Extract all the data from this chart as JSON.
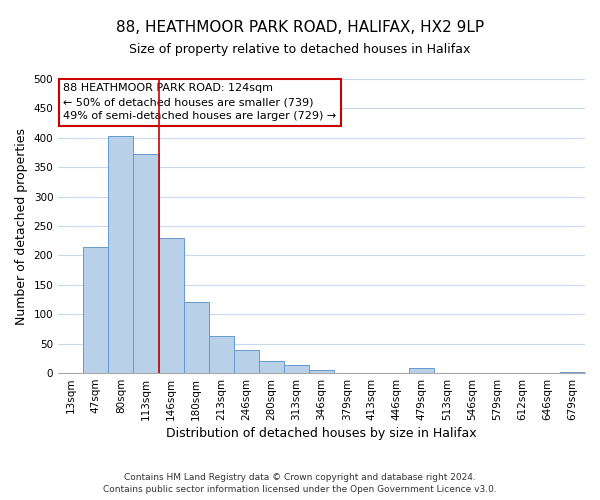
{
  "title": "88, HEATHMOOR PARK ROAD, HALIFAX, HX2 9LP",
  "subtitle": "Size of property relative to detached houses in Halifax",
  "xlabel": "Distribution of detached houses by size in Halifax",
  "ylabel": "Number of detached properties",
  "bar_color": "#b8d0e8",
  "bar_edge_color": "#6699cc",
  "categories": [
    "13sqm",
    "47sqm",
    "80sqm",
    "113sqm",
    "146sqm",
    "180sqm",
    "213sqm",
    "246sqm",
    "280sqm",
    "313sqm",
    "346sqm",
    "379sqm",
    "413sqm",
    "446sqm",
    "479sqm",
    "513sqm",
    "546sqm",
    "579sqm",
    "612sqm",
    "646sqm",
    "679sqm"
  ],
  "values": [
    0,
    215,
    403,
    372,
    229,
    120,
    63,
    40,
    21,
    14,
    5,
    0,
    0,
    0,
    8,
    0,
    0,
    0,
    0,
    0,
    2
  ],
  "ylim": [
    0,
    500
  ],
  "yticks": [
    0,
    50,
    100,
    150,
    200,
    250,
    300,
    350,
    400,
    450,
    500
  ],
  "vline_x_index": 3,
  "vline_color": "#cc0000",
  "annotation_lines": [
    "88 HEATHMOOR PARK ROAD: 124sqm",
    "← 50% of detached houses are smaller (739)",
    "49% of semi-detached houses are larger (729) →"
  ],
  "footer_lines": [
    "Contains HM Land Registry data © Crown copyright and database right 2024.",
    "Contains public sector information licensed under the Open Government Licence v3.0."
  ],
  "background_color": "#ffffff",
  "grid_color": "#c8d8e8",
  "title_fontsize": 11,
  "subtitle_fontsize": 9,
  "axis_label_fontsize": 9,
  "tick_fontsize": 7.5,
  "annotation_fontsize": 8,
  "footer_fontsize": 6.5
}
